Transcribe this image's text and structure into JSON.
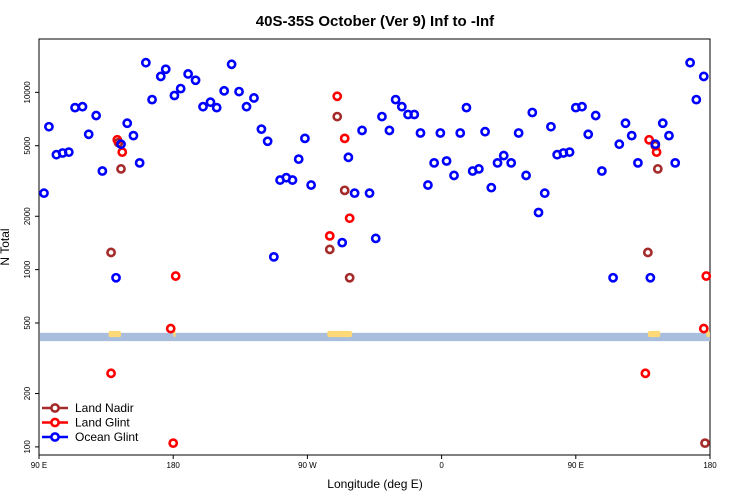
{
  "chart_data": {
    "type": "scatter",
    "title": "40S-35S October (Ver 9)   Inf to -Inf",
    "xlabel": "Longitude (deg E)",
    "ylabel": "N Total",
    "x_scale": "linear",
    "y_scale": "log",
    "xlim": [
      -90,
      180
    ],
    "ylim": [
      90,
      20000
    ],
    "x_ticks": [
      {
        "value": -90,
        "label": "90 E"
      },
      {
        "value": -36,
        "label": "180"
      },
      {
        "value": 18,
        "label": "90 W"
      },
      {
        "value": 72,
        "label": "0"
      },
      {
        "value": 126,
        "label": "90 E"
      },
      {
        "value": 180,
        "label": "180"
      }
    ],
    "y_ticks": [
      100,
      200,
      500,
      1000,
      2000,
      5000,
      10000
    ],
    "grid": false,
    "legend_position": "bottom-left",
    "series": [
      {
        "name": "Land Nadir",
        "color": "#a52a2a",
        "points": [
          {
            "x": -61.0,
            "y": 1250
          },
          {
            "x": -58.0,
            "y": 5200
          },
          {
            "x": -57.0,
            "y": 3700
          },
          {
            "x": 27.0,
            "y": 1300
          },
          {
            "x": 30.0,
            "y": 7300
          },
          {
            "x": 33.0,
            "y": 2800
          },
          {
            "x": 35.0,
            "y": 900
          },
          {
            "x": 155.0,
            "y": 1250
          },
          {
            "x": 158.0,
            "y": 5000
          },
          {
            "x": 159.0,
            "y": 3700
          },
          {
            "x": 178.0,
            "y": 105
          }
        ]
      },
      {
        "name": "Land Glint",
        "color": "#ff0000",
        "points": [
          {
            "x": -61.0,
            "y": 260
          },
          {
            "x": -58.5,
            "y": 5400
          },
          {
            "x": -56.5,
            "y": 4600
          },
          {
            "x": -37.0,
            "y": 465
          },
          {
            "x": -35.0,
            "y": 920
          },
          {
            "x": -36.0,
            "y": 105
          },
          {
            "x": 27.0,
            "y": 1550
          },
          {
            "x": 30.0,
            "y": 9500
          },
          {
            "x": 33.0,
            "y": 5500
          },
          {
            "x": 35.0,
            "y": 1950
          },
          {
            "x": 154.0,
            "y": 260
          },
          {
            "x": 155.5,
            "y": 5400
          },
          {
            "x": 158.5,
            "y": 4600
          },
          {
            "x": 177.5,
            "y": 465
          },
          {
            "x": 178.5,
            "y": 920
          }
        ]
      },
      {
        "name": "Ocean Glint",
        "color": "#0000ff",
        "points": [
          {
            "x": -88.0,
            "y": 2700
          },
          {
            "x": -86.0,
            "y": 6400
          },
          {
            "x": -83.0,
            "y": 4450
          },
          {
            "x": -80.5,
            "y": 4550
          },
          {
            "x": -78.0,
            "y": 4600
          },
          {
            "x": -75.5,
            "y": 8200
          },
          {
            "x": -72.5,
            "y": 8300
          },
          {
            "x": -70.0,
            "y": 5800
          },
          {
            "x": -67.0,
            "y": 7400
          },
          {
            "x": -64.5,
            "y": 3600
          },
          {
            "x": -59.0,
            "y": 900
          },
          {
            "x": -57.0,
            "y": 5100
          },
          {
            "x": -54.5,
            "y": 6700
          },
          {
            "x": -52.0,
            "y": 5700
          },
          {
            "x": -49.5,
            "y": 4000
          },
          {
            "x": -47.0,
            "y": 14700
          },
          {
            "x": -44.5,
            "y": 9100
          },
          {
            "x": -41.0,
            "y": 12300
          },
          {
            "x": -39.0,
            "y": 13500
          },
          {
            "x": -35.5,
            "y": 9600
          },
          {
            "x": -33.0,
            "y": 10500
          },
          {
            "x": -30.0,
            "y": 12700
          },
          {
            "x": -27.0,
            "y": 11700
          },
          {
            "x": -24.0,
            "y": 8300
          },
          {
            "x": -21.0,
            "y": 8800
          },
          {
            "x": -18.5,
            "y": 8200
          },
          {
            "x": -15.5,
            "y": 10200
          },
          {
            "x": -12.5,
            "y": 14400
          },
          {
            "x": -9.5,
            "y": 10100
          },
          {
            "x": -6.5,
            "y": 8300
          },
          {
            "x": -3.5,
            "y": 9300
          },
          {
            "x": -0.5,
            "y": 6200
          },
          {
            "x": 2.0,
            "y": 5300
          },
          {
            "x": 4.5,
            "y": 1180
          },
          {
            "x": 7.0,
            "y": 3200
          },
          {
            "x": 9.5,
            "y": 3300
          },
          {
            "x": 12.0,
            "y": 3200
          },
          {
            "x": 14.5,
            "y": 4200
          },
          {
            "x": 17.0,
            "y": 5500
          },
          {
            "x": 19.5,
            "y": 3000
          },
          {
            "x": 32.0,
            "y": 1420
          },
          {
            "x": 34.5,
            "y": 4300
          },
          {
            "x": 37.0,
            "y": 2700
          },
          {
            "x": 40.0,
            "y": 6100
          },
          {
            "x": 43.0,
            "y": 2700
          },
          {
            "x": 45.5,
            "y": 1500
          },
          {
            "x": 48.0,
            "y": 7300
          },
          {
            "x": 51.0,
            "y": 6100
          },
          {
            "x": 53.5,
            "y": 9100
          },
          {
            "x": 56.0,
            "y": 8300
          },
          {
            "x": 58.5,
            "y": 7500
          },
          {
            "x": 61.0,
            "y": 7500
          },
          {
            "x": 63.5,
            "y": 5900
          },
          {
            "x": 66.5,
            "y": 3000
          },
          {
            "x": 69.0,
            "y": 4000
          },
          {
            "x": 71.5,
            "y": 5900
          },
          {
            "x": 74.0,
            "y": 4100
          },
          {
            "x": 77.0,
            "y": 3400
          },
          {
            "x": 79.5,
            "y": 5900
          },
          {
            "x": 82.0,
            "y": 8200
          },
          {
            "x": 84.5,
            "y": 3600
          },
          {
            "x": 87.0,
            "y": 3700
          },
          {
            "x": 89.5,
            "y": 6000
          },
          {
            "x": 92.0,
            "y": 2900
          },
          {
            "x": 94.5,
            "y": 4000
          },
          {
            "x": 97.0,
            "y": 4400
          },
          {
            "x": 100.0,
            "y": 4000
          },
          {
            "x": 103.0,
            "y": 5900
          },
          {
            "x": 106.0,
            "y": 3400
          },
          {
            "x": 108.5,
            "y": 7700
          },
          {
            "x": 111.0,
            "y": 2100
          },
          {
            "x": 113.5,
            "y": 2700
          },
          {
            "x": 116.0,
            "y": 6400
          },
          {
            "x": 118.5,
            "y": 4450
          },
          {
            "x": 121.0,
            "y": 4550
          },
          {
            "x": 123.5,
            "y": 4600
          },
          {
            "x": 126.0,
            "y": 8200
          },
          {
            "x": 128.5,
            "y": 8300
          },
          {
            "x": 131.0,
            "y": 5800
          },
          {
            "x": 134.0,
            "y": 7400
          },
          {
            "x": 136.5,
            "y": 3600
          },
          {
            "x": 141.0,
            "y": 900
          },
          {
            "x": 143.5,
            "y": 5100
          },
          {
            "x": 146.0,
            "y": 6700
          },
          {
            "x": 148.5,
            "y": 5700
          },
          {
            "x": 151.0,
            "y": 4000
          },
          {
            "x": 156.0,
            "y": 900
          },
          {
            "x": 158.0,
            "y": 5100
          },
          {
            "x": 161.0,
            "y": 6700
          },
          {
            "x": 163.5,
            "y": 5700
          },
          {
            "x": 166.0,
            "y": 4000
          },
          {
            "x": 172.0,
            "y": 14700
          },
          {
            "x": 174.5,
            "y": 9100
          },
          {
            "x": 177.5,
            "y": 12300
          }
        ]
      }
    ],
    "map_strip": {
      "ocean_color": "#a8bedc",
      "land_color": "#ffd878",
      "land_segments_lon": [
        [
          -62,
          -57
        ],
        [
          -36,
          -35
        ],
        [
          26,
          36
        ],
        [
          155,
          160
        ],
        [
          178.5,
          180
        ]
      ]
    }
  }
}
